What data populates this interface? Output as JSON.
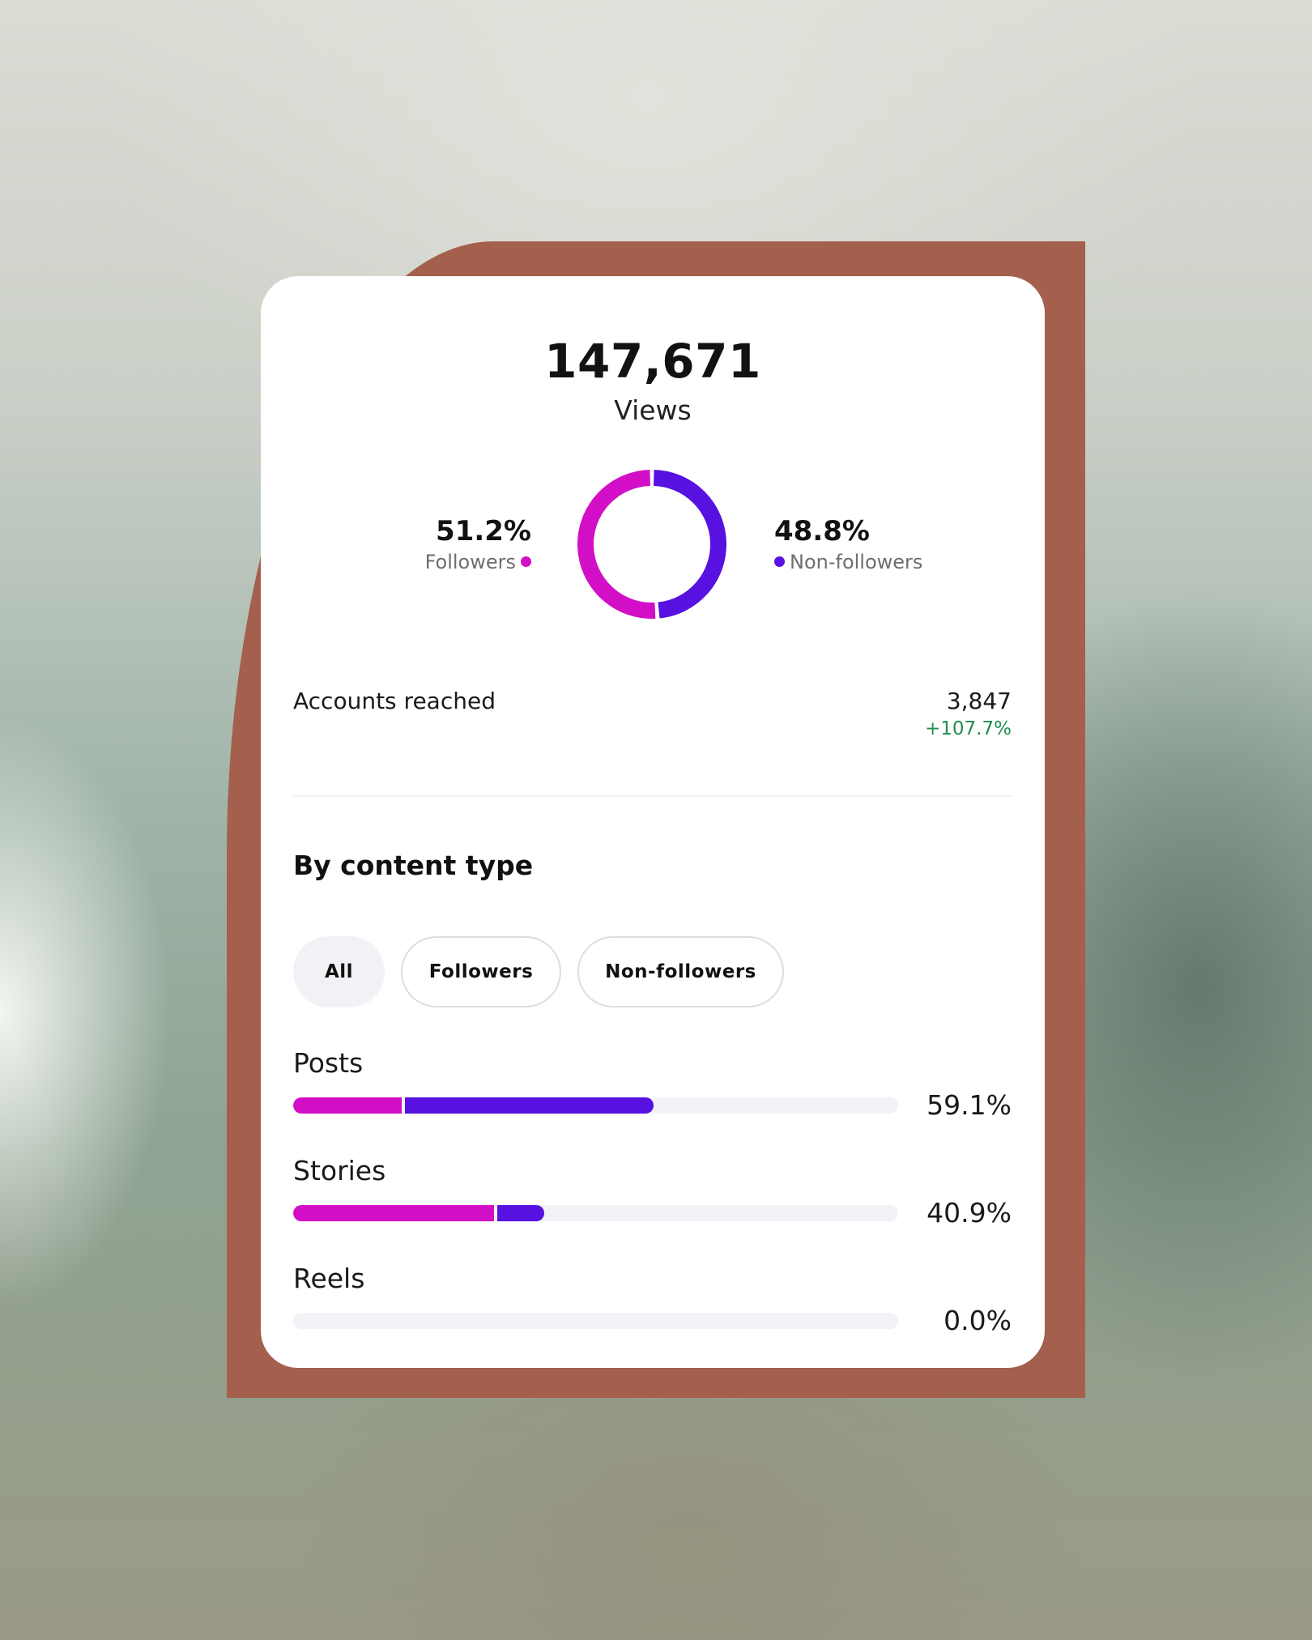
{
  "colors": {
    "followers": "#d20fc6",
    "non_followers": "#5711e0",
    "positive_change": "#1f8f4f",
    "backdrop": "#a4604c"
  },
  "views": {
    "total": "147,671",
    "label": "Views",
    "followers_pct_label": "51.2%",
    "followers_label": "Followers",
    "non_followers_pct_label": "48.8%",
    "non_followers_label": "Non-followers"
  },
  "chart_data": [
    {
      "type": "pie",
      "categories": [
        "Followers",
        "Non-followers"
      ],
      "values": [
        51.2,
        48.8
      ]
    },
    {
      "type": "bar",
      "categories": [
        "Posts",
        "Stories",
        "Reels"
      ],
      "values": [
        59.1,
        40.9,
        0.0
      ]
    }
  ],
  "accounts_reached": {
    "label": "Accounts reached",
    "value": "3,847",
    "change": "+107.7%"
  },
  "content_type": {
    "title": "By content type",
    "filters": [
      "All",
      "Followers",
      "Non-followers"
    ],
    "active_filter": "All",
    "rows": [
      {
        "label": "Posts",
        "pct_label": "59.1%",
        "followers_share": 17.9,
        "non_followers_share": 41.2
      },
      {
        "label": "Stories",
        "pct_label": "40.9%",
        "followers_share": 33.2,
        "non_followers_share": 7.7
      },
      {
        "label": "Reels",
        "pct_label": "0.0%",
        "followers_share": 0,
        "non_followers_share": 0
      }
    ]
  }
}
